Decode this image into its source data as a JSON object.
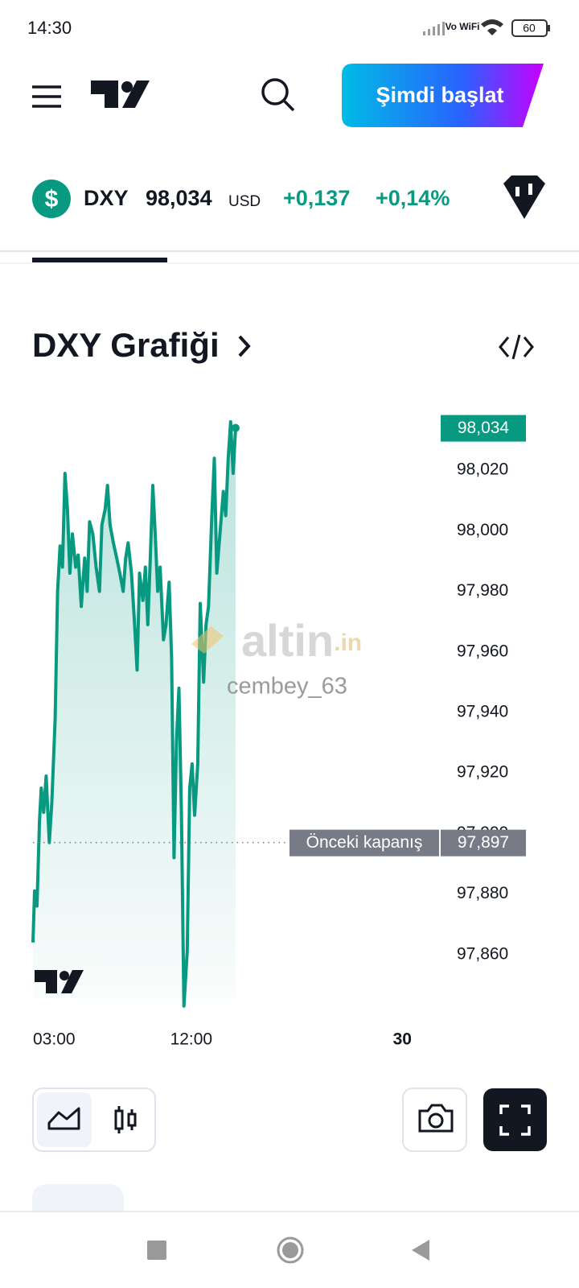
{
  "status_bar": {
    "time": "14:30",
    "network": "Vo WiFi",
    "battery": "60"
  },
  "header": {
    "cta": "Şimdi başlat"
  },
  "ticker": {
    "currency_icon": "$",
    "symbol": "DXY",
    "price": "98,034",
    "currency": "USD",
    "change": "+0,137",
    "change_pct": "+0,14%"
  },
  "watermark": {
    "brand": "altin",
    "brand_suffix": ".in",
    "user": "cembey_63"
  },
  "chart_data": {
    "type": "line",
    "title": "DXY Grafiği",
    "color": "#089981",
    "x": [
      3.0,
      3.09,
      3.23,
      3.37,
      3.47,
      3.61,
      3.75,
      3.93,
      4.07,
      4.26,
      4.4,
      4.54,
      4.68,
      4.82,
      4.96,
      5.1,
      5.24,
      5.43,
      5.57,
      5.75,
      5.94,
      6.08,
      6.22,
      6.4,
      6.59,
      6.78,
      6.92,
      7.1,
      7.24,
      7.38,
      7.57,
      7.76,
      7.94,
      8.13,
      8.27,
      8.41,
      8.6,
      8.78,
      8.92,
      9.06,
      9.25,
      9.39,
      9.53,
      9.67,
      9.81,
      9.95,
      10.09,
      10.23,
      10.42,
      10.56,
      10.74,
      10.88,
      11.02,
      11.16,
      11.3,
      11.44,
      11.58,
      11.77,
      11.91,
      12.05,
      12.19,
      12.37,
      12.51,
      12.7,
      12.84,
      12.98,
      13.17,
      13.31,
      13.45,
      13.63,
      13.82,
      13.96,
      14.1,
      14.24,
      14.38,
      14.52
    ],
    "values": [
      97.864,
      97.881,
      97.876,
      97.904,
      97.915,
      97.907,
      97.919,
      97.897,
      97.91,
      97.938,
      97.98,
      97.995,
      97.988,
      98.019,
      98.007,
      97.986,
      97.999,
      97.988,
      97.992,
      97.975,
      97.991,
      97.98,
      98.003,
      97.999,
      97.988,
      97.98,
      98.002,
      98.007,
      98.015,
      98.002,
      97.996,
      97.991,
      97.986,
      97.98,
      97.991,
      97.996,
      97.986,
      97.969,
      97.954,
      97.986,
      97.977,
      97.988,
      97.969,
      97.991,
      98.015,
      97.999,
      97.98,
      97.988,
      97.964,
      97.969,
      97.983,
      97.958,
      97.892,
      97.931,
      97.948,
      97.907,
      97.843,
      97.861,
      97.915,
      97.923,
      97.906,
      97.923,
      97.976,
      97.95,
      97.969,
      97.975,
      98.005,
      98.024,
      97.986,
      97.999,
      98.013,
      98.005,
      98.024,
      98.036,
      98.019,
      98.034
    ],
    "xlim": [
      3,
      26.5
    ],
    "xticks": [
      {
        "value": 3,
        "label": "03:00"
      },
      {
        "value": 12,
        "label": "12:00"
      },
      {
        "value": 24,
        "label": "30"
      }
    ],
    "ylim": [
      97.84,
      98.04
    ],
    "yticks": [
      {
        "value": 97.86,
        "label": "97,860"
      },
      {
        "value": 97.88,
        "label": "97,880"
      },
      {
        "value": 97.9,
        "label": "97,900"
      },
      {
        "value": 97.92,
        "label": "97,920"
      },
      {
        "value": 97.94,
        "label": "97,940"
      },
      {
        "value": 97.96,
        "label": "97,960"
      },
      {
        "value": 97.98,
        "label": "97,980"
      },
      {
        "value": 98.0,
        "label": "98,000"
      },
      {
        "value": 98.02,
        "label": "98,020"
      }
    ],
    "grid": false,
    "last_price": {
      "value": 98.034,
      "label": "98,034"
    },
    "previous_close": {
      "text": "Önceki kapanış",
      "value": 97.897,
      "label": "97,897"
    }
  }
}
